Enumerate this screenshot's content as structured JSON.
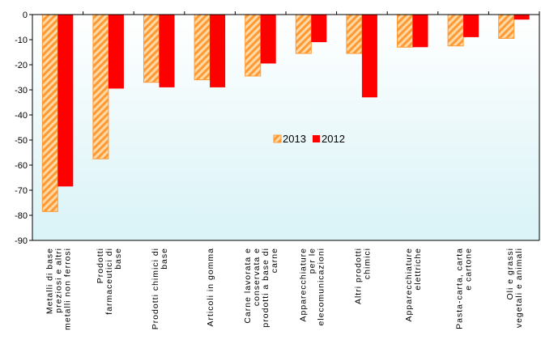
{
  "chart_data": {
    "type": "bar",
    "categories": [
      [
        "Metalli di base",
        "preziosi e altri",
        "metalli non ferrosi"
      ],
      [
        "Prodotti",
        "farmaceutici di",
        "base"
      ],
      [
        "Prodotti chimici di",
        "base"
      ],
      [
        "Articoli in gomma"
      ],
      [
        "Carne lavorata e",
        "conservata e",
        "prodotti a base di",
        "carne"
      ],
      [
        "Apparecchiature",
        "per le",
        "elecomunicazioni"
      ],
      [
        "Altri prodotti",
        "chimici"
      ],
      [
        "Apparecchiature",
        "elettriche"
      ],
      [
        "Pasta-carta, carta",
        "e cartone"
      ],
      [
        "Oli e grassi",
        "vegetali e animali"
      ]
    ],
    "series": [
      {
        "name": "2013",
        "values": [
          -78.5,
          -57.5,
          -27,
          -26,
          -24.5,
          -15.5,
          -15.5,
          -13,
          -12.5,
          -9.5
        ]
      },
      {
        "name": "2012",
        "values": [
          -68.5,
          -29.5,
          -29,
          -29,
          -19.5,
          -11,
          -33,
          -13,
          -9,
          -2
        ]
      }
    ],
    "ylim": [
      -90,
      0
    ],
    "yticks": [
      "0",
      "-10",
      "-20",
      "-30",
      "-40",
      "-50",
      "-60",
      "-70",
      "-80",
      "-90"
    ],
    "legend_position": "center",
    "colors": {
      "series_2013": "#ff9933",
      "series_2013_hatch": "#ffd9a6",
      "series_2012": "#ff0000",
      "plot_background_top": "#ffffff",
      "plot_background_bottom": "#d9f3f7"
    },
    "grid": false
  }
}
